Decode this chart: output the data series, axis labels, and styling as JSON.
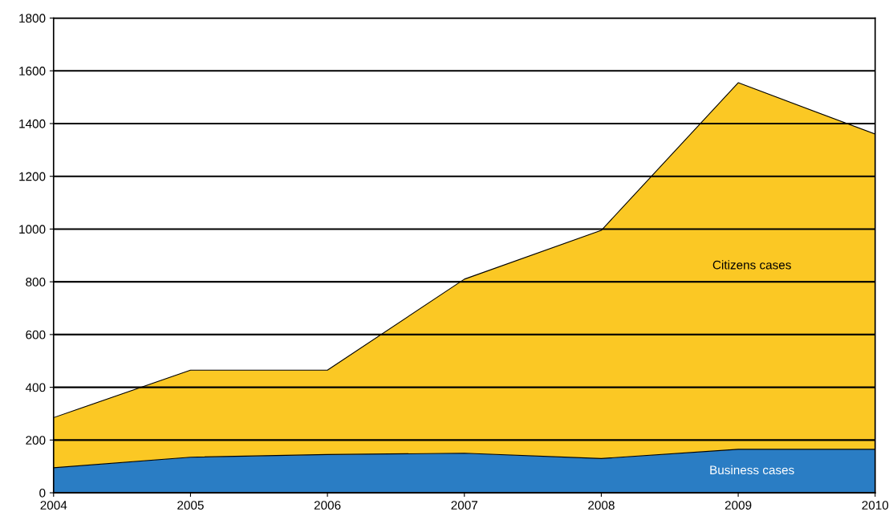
{
  "chart_data": {
    "type": "area",
    "stacked": true,
    "x": [
      2004,
      2005,
      2006,
      2007,
      2008,
      2009,
      2010
    ],
    "series": [
      {
        "name": "Business cases",
        "color": "#2a7dc4",
        "values": [
          95,
          135,
          145,
          150,
          130,
          165,
          165
        ]
      },
      {
        "name": "Citizens cases",
        "color": "#fbc824",
        "values": [
          190,
          330,
          320,
          660,
          865,
          1390,
          1195
        ]
      }
    ],
    "xlim": [
      2004,
      2010
    ],
    "xticks": [
      2004,
      2005,
      2006,
      2007,
      2008,
      2009,
      2010
    ],
    "ylim": [
      0,
      1800
    ],
    "yticks": [
      0,
      200,
      400,
      600,
      800,
      1000,
      1200,
      1400,
      1600,
      1800
    ],
    "grid": "y",
    "legend": false
  }
}
